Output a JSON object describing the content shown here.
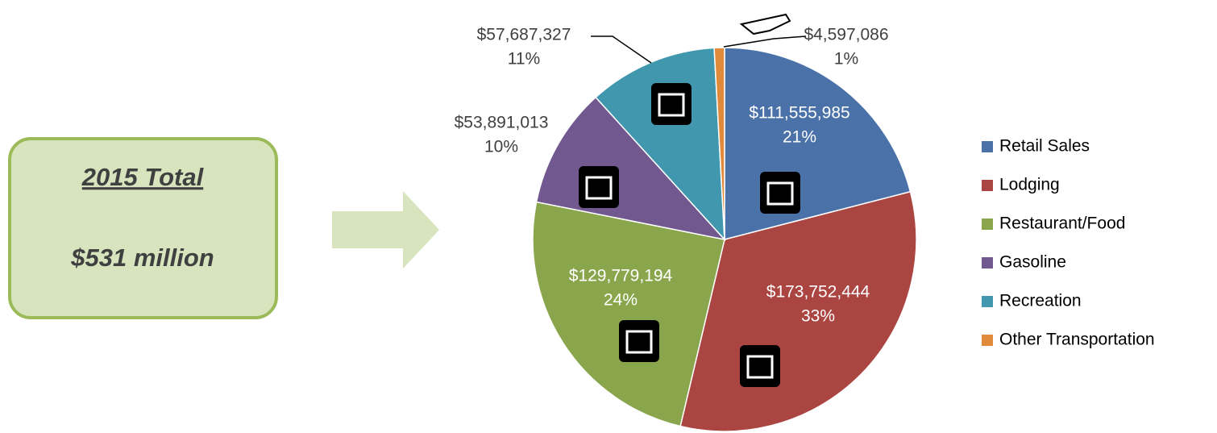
{
  "chart_data": {
    "type": "pie",
    "annotations": [
      "2015 Total",
      "$531 million"
    ],
    "categories": [
      "Retail Sales",
      "Lodging",
      "Restaurant/Food",
      "Gasoline",
      "Recreation",
      "Other Transportation"
    ],
    "values": [
      111555985,
      173752444,
      129779194,
      53891013,
      57687327,
      4597086
    ],
    "value_labels": [
      "$111,555,985",
      "$173,752,444",
      "$129,779,194",
      "$53,891,013",
      "$57,687,327",
      "$4,597,086"
    ],
    "percents": [
      21,
      33,
      24,
      10,
      11,
      1
    ],
    "percent_labels": [
      "21%",
      "33%",
      "24%",
      "10%",
      "11%",
      "1%"
    ],
    "colors": [
      "#4a71a8",
      "#ab4542",
      "#8aa64c",
      "#71588f",
      "#4097ae",
      "#e08a3c"
    ],
    "legend": "right"
  }
}
